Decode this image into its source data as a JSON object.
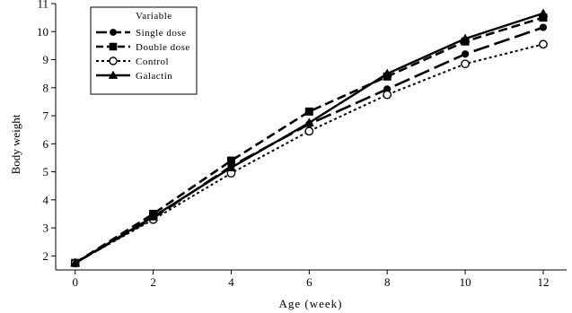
{
  "chart_data": {
    "type": "line",
    "title": "",
    "xlabel": "Age (week)",
    "ylabel": "Body weight",
    "x": [
      0,
      2,
      4,
      6,
      8,
      10,
      12
    ],
    "xlim": [
      -0.5,
      12.6
    ],
    "ylim": [
      1.5,
      11
    ],
    "xticks": [
      0,
      2,
      4,
      6,
      8,
      10,
      12
    ],
    "yticks": [
      2,
      3,
      4,
      5,
      6,
      7,
      8,
      9,
      10,
      11
    ],
    "grid": false,
    "legend": {
      "title": "Variable",
      "position": "top-left"
    },
    "series": [
      {
        "name": "Single dose",
        "values": [
          1.75,
          3.35,
          5.2,
          6.7,
          7.95,
          9.2,
          10.15
        ],
        "marker": "circle-filled",
        "dash": "long-dash"
      },
      {
        "name": "Double dose",
        "values": [
          1.75,
          3.5,
          5.4,
          7.15,
          8.4,
          9.65,
          10.5
        ],
        "marker": "square",
        "dash": "dash"
      },
      {
        "name": "Control",
        "values": [
          1.75,
          3.3,
          4.95,
          6.45,
          7.75,
          8.85,
          9.55
        ],
        "marker": "circle-open",
        "dash": "dot"
      },
      {
        "name": "Galactin",
        "values": [
          1.75,
          3.4,
          5.15,
          6.75,
          8.5,
          9.75,
          10.65
        ],
        "marker": "triangle",
        "dash": "solid"
      }
    ]
  }
}
